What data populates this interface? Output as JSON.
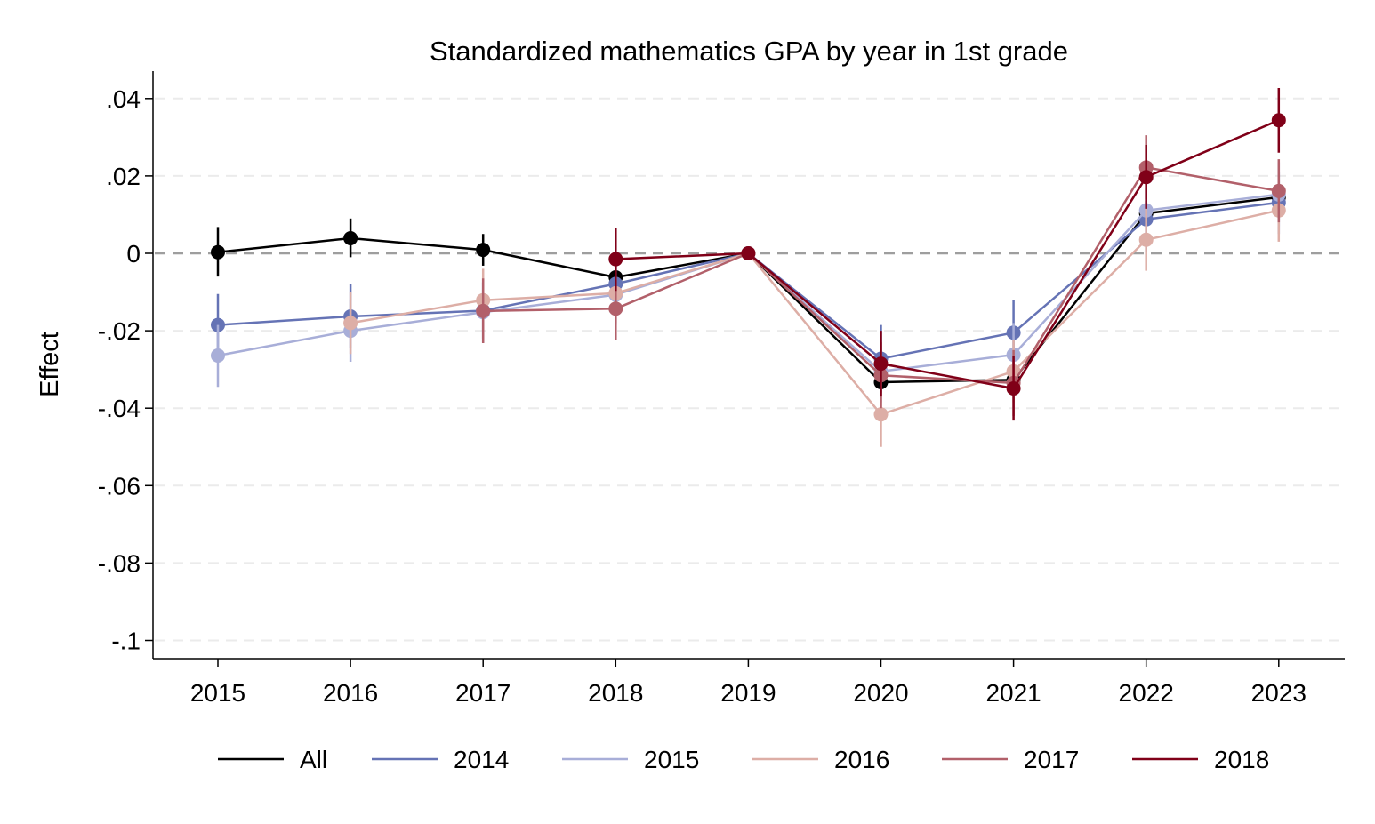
{
  "chart_data": {
    "type": "line",
    "title": "Standardized mathematics GPA by year in 1st grade",
    "xlabel": "",
    "ylabel": "Effect",
    "x": [
      2015,
      2016,
      2017,
      2018,
      2019,
      2020,
      2021,
      2022,
      2023
    ],
    "x_tick_labels": [
      "2015",
      "2016",
      "2017",
      "2018",
      "2019",
      "2020",
      "2021",
      "2022",
      "2023"
    ],
    "ylim": [
      -0.105,
      0.047
    ],
    "y_ticks": [
      0.04,
      0.02,
      0,
      -0.02,
      -0.04,
      -0.06,
      -0.08,
      -0.1
    ],
    "y_tick_labels": [
      ".04",
      ".02",
      "0",
      "-.02",
      "-.04",
      "-.06",
      "-.08",
      "-.1"
    ],
    "grid": "horizontal dashed",
    "reference_line": 0,
    "legend_position": "bottom",
    "series": [
      {
        "name": "All",
        "color": "#000000",
        "points": [
          {
            "x": 2015,
            "y": 0.0003,
            "lo": -0.006,
            "hi": 0.0068
          },
          {
            "x": 2016,
            "y": 0.0039,
            "lo": -0.001,
            "hi": 0.009
          },
          {
            "x": 2017,
            "y": 0.0009,
            "lo": -0.0032,
            "hi": 0.005
          },
          {
            "x": 2018,
            "y": -0.0062,
            "lo": -0.0105,
            "hi": -0.002
          },
          {
            "x": 2019,
            "y": 0
          },
          {
            "x": 2020,
            "y": -0.0333,
            "lo": -0.036,
            "hi": -0.03
          },
          {
            "x": 2021,
            "y": -0.0327,
            "lo": -0.0355,
            "hi": -0.03
          },
          {
            "x": 2022,
            "y": 0.0103,
            "lo": 0.007,
            "hi": 0.0135
          },
          {
            "x": 2023,
            "y": 0.0145,
            "lo": 0.011,
            "hi": 0.018
          }
        ]
      },
      {
        "name": "2014",
        "color": "#6573b5",
        "points": [
          {
            "x": 2015,
            "y": -0.0185,
            "lo": -0.0265,
            "hi": -0.0105
          },
          {
            "x": 2016,
            "y": -0.0163,
            "lo": -0.0245,
            "hi": -0.008
          },
          {
            "x": 2017,
            "y": -0.0148,
            "lo": -0.022,
            "hi": -0.0075
          },
          {
            "x": 2018,
            "y": -0.0079,
            "lo": -0.0145,
            "hi": -0.001
          },
          {
            "x": 2019,
            "y": 0
          },
          {
            "x": 2020,
            "y": -0.0272,
            "lo": -0.036,
            "hi": -0.0185
          },
          {
            "x": 2021,
            "y": -0.0205,
            "lo": -0.029,
            "hi": -0.012
          },
          {
            "x": 2022,
            "y": 0.0088,
            "lo": 0.0005,
            "hi": 0.017
          },
          {
            "x": 2023,
            "y": 0.0131,
            "lo": 0.005,
            "hi": 0.021
          }
        ]
      },
      {
        "name": "2015",
        "color": "#a8aed8",
        "points": [
          {
            "x": 2015,
            "y": -0.0264,
            "lo": -0.0345,
            "hi": -0.0185
          },
          {
            "x": 2016,
            "y": -0.02,
            "lo": -0.028,
            "hi": -0.012
          },
          {
            "x": 2017,
            "y": -0.0152,
            "lo": -0.023,
            "hi": -0.0075
          },
          {
            "x": 2018,
            "y": -0.0107,
            "lo": -0.0185,
            "hi": -0.003
          },
          {
            "x": 2019,
            "y": 0
          },
          {
            "x": 2020,
            "y": -0.0305,
            "lo": -0.0385,
            "hi": -0.0225
          },
          {
            "x": 2021,
            "y": -0.0262,
            "lo": -0.034,
            "hi": -0.018
          },
          {
            "x": 2022,
            "y": 0.0111,
            "lo": 0.003,
            "hi": 0.019
          },
          {
            "x": 2023,
            "y": 0.0152,
            "lo": 0.007,
            "hi": 0.0235
          }
        ]
      },
      {
        "name": "2016",
        "color": "#ddaeA6",
        "points": [
          {
            "x": 2015,
            "y": null
          },
          {
            "x": 2016,
            "y": -0.018,
            "lo": -0.026,
            "hi": -0.01
          },
          {
            "x": 2017,
            "y": -0.0121,
            "lo": -0.02,
            "hi": -0.004
          },
          {
            "x": 2018,
            "y": -0.0103,
            "lo": -0.018,
            "hi": -0.0025
          },
          {
            "x": 2019,
            "y": 0
          },
          {
            "x": 2020,
            "y": -0.0416,
            "lo": -0.05,
            "hi": -0.0335
          },
          {
            "x": 2021,
            "y": -0.0305,
            "lo": -0.0385,
            "hi": -0.0225
          },
          {
            "x": 2022,
            "y": 0.0035,
            "lo": -0.0045,
            "hi": 0.0115
          },
          {
            "x": 2023,
            "y": 0.0111,
            "lo": 0.003,
            "hi": 0.019
          }
        ]
      },
      {
        "name": "2017",
        "color": "#b2606a",
        "points": [
          {
            "x": 2015,
            "y": null
          },
          {
            "x": 2016,
            "y": null
          },
          {
            "x": 2017,
            "y": -0.0149,
            "lo": -0.0232,
            "hi": -0.0065
          },
          {
            "x": 2018,
            "y": -0.0143,
            "lo": -0.0225,
            "hi": -0.006
          },
          {
            "x": 2019,
            "y": 0
          },
          {
            "x": 2020,
            "y": -0.0315,
            "lo": -0.04,
            "hi": -0.023
          },
          {
            "x": 2021,
            "y": -0.0335,
            "lo": -0.042,
            "hi": -0.025
          },
          {
            "x": 2022,
            "y": 0.0222,
            "lo": 0.014,
            "hi": 0.0305
          },
          {
            "x": 2023,
            "y": 0.0161,
            "lo": 0.008,
            "hi": 0.0243
          }
        ]
      },
      {
        "name": "2018",
        "color": "#800018",
        "points": [
          {
            "x": 2015,
            "y": null
          },
          {
            "x": 2016,
            "y": null
          },
          {
            "x": 2017,
            "y": null
          },
          {
            "x": 2018,
            "y": -0.0015,
            "lo": -0.0097,
            "hi": 0.0066
          },
          {
            "x": 2019,
            "y": 0
          },
          {
            "x": 2020,
            "y": -0.0285,
            "lo": -0.037,
            "hi": -0.02
          },
          {
            "x": 2021,
            "y": -0.0349,
            "lo": -0.0432,
            "hi": -0.0266
          },
          {
            "x": 2022,
            "y": 0.0197,
            "lo": 0.0115,
            "hi": 0.028
          },
          {
            "x": 2023,
            "y": 0.0344,
            "lo": 0.026,
            "hi": 0.0427
          }
        ]
      }
    ]
  }
}
